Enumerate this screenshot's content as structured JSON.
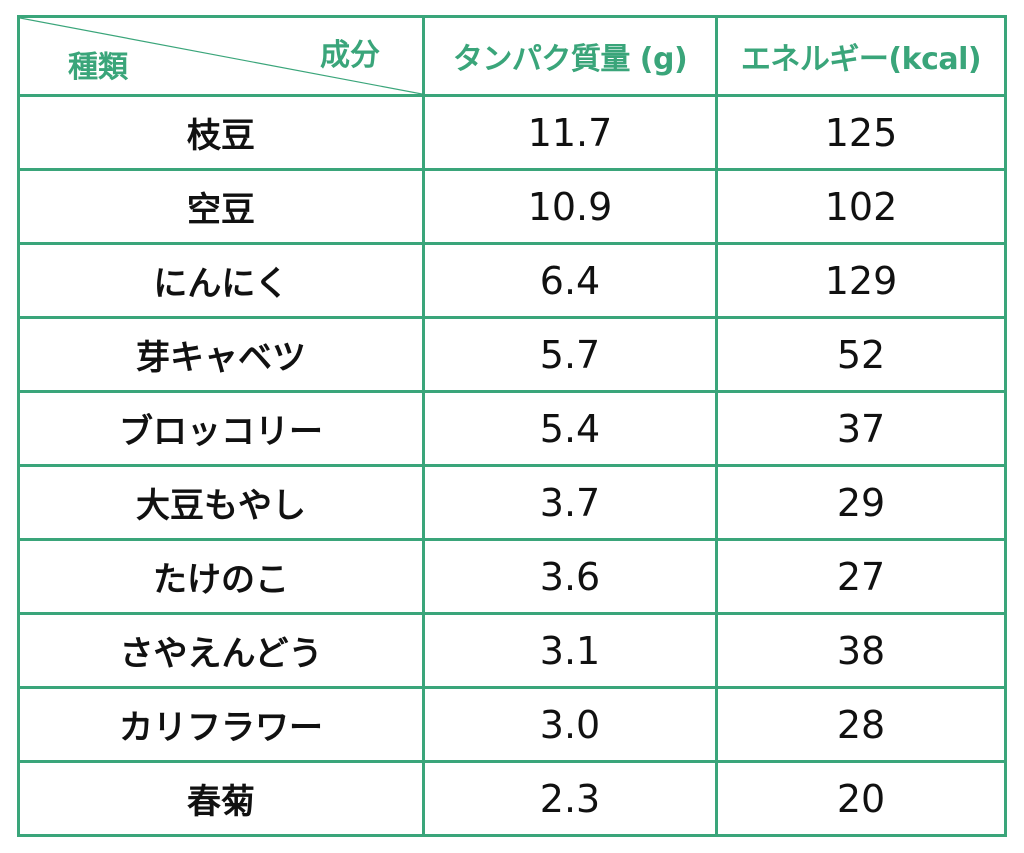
{
  "table": {
    "corner": {
      "top_label": "成分",
      "bottom_label": "種類"
    },
    "headers": [
      "タンパク質量 (g)",
      "エネルギー(kcal)"
    ],
    "rows": [
      {
        "name": "枝豆",
        "protein": "11.7",
        "energy": "125"
      },
      {
        "name": "空豆",
        "protein": "10.9",
        "energy": "102"
      },
      {
        "name": "にんにく",
        "protein": "6.4",
        "energy": "129"
      },
      {
        "name": "芽キャベツ",
        "protein": "5.7",
        "energy": "52"
      },
      {
        "name": "ブロッコリー",
        "protein": "5.4",
        "energy": "37"
      },
      {
        "name": "大豆もやし",
        "protein": "3.7",
        "energy": "29"
      },
      {
        "name": "たけのこ",
        "protein": "3.6",
        "energy": "27"
      },
      {
        "name": "さやえんどう",
        "protein": "3.1",
        "energy": "38"
      },
      {
        "name": "カリフラワー",
        "protein": "3.0",
        "energy": "28"
      },
      {
        "name": "春菊",
        "protein": "2.3",
        "energy": "20"
      }
    ],
    "border_color": "#3aa57a",
    "header_text_color": "#3aa57a"
  }
}
